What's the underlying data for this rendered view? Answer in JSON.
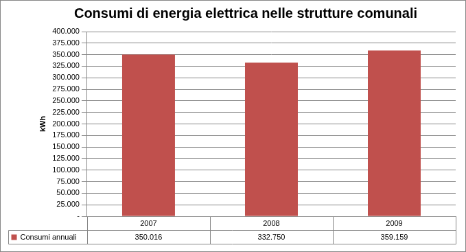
{
  "chart_data": {
    "type": "bar",
    "title": "Consumi di energia elettrica nelle strutture comunali",
    "y_label": "kWh",
    "categories": [
      "2007",
      "2008",
      "2009"
    ],
    "series": [
      {
        "name": "Consumi annuali",
        "color": "#c0504d",
        "values": [
          350016,
          332750,
          359159
        ],
        "value_labels": [
          "350.016",
          "332.750",
          "359.159"
        ]
      }
    ],
    "ylim": [
      0,
      400000
    ],
    "yticks": [
      {
        "value": 0,
        "label": "-"
      },
      {
        "value": 25000,
        "label": "25.000"
      },
      {
        "value": 50000,
        "label": "50.000"
      },
      {
        "value": 75000,
        "label": "75.000"
      },
      {
        "value": 100000,
        "label": "100.000"
      },
      {
        "value": 125000,
        "label": "125.000"
      },
      {
        "value": 150000,
        "label": "150.000"
      },
      {
        "value": 175000,
        "label": "175.000"
      },
      {
        "value": 200000,
        "label": "200.000"
      },
      {
        "value": 225000,
        "label": "225.000"
      },
      {
        "value": 250000,
        "label": "250.000"
      },
      {
        "value": 275000,
        "label": "275.000"
      },
      {
        "value": 300000,
        "label": "300.000"
      },
      {
        "value": 325000,
        "label": "325.000"
      },
      {
        "value": 350000,
        "label": "350.000"
      },
      {
        "value": 375000,
        "label": "375.000"
      },
      {
        "value": 400000,
        "label": "400.000"
      }
    ],
    "grid": true
  }
}
